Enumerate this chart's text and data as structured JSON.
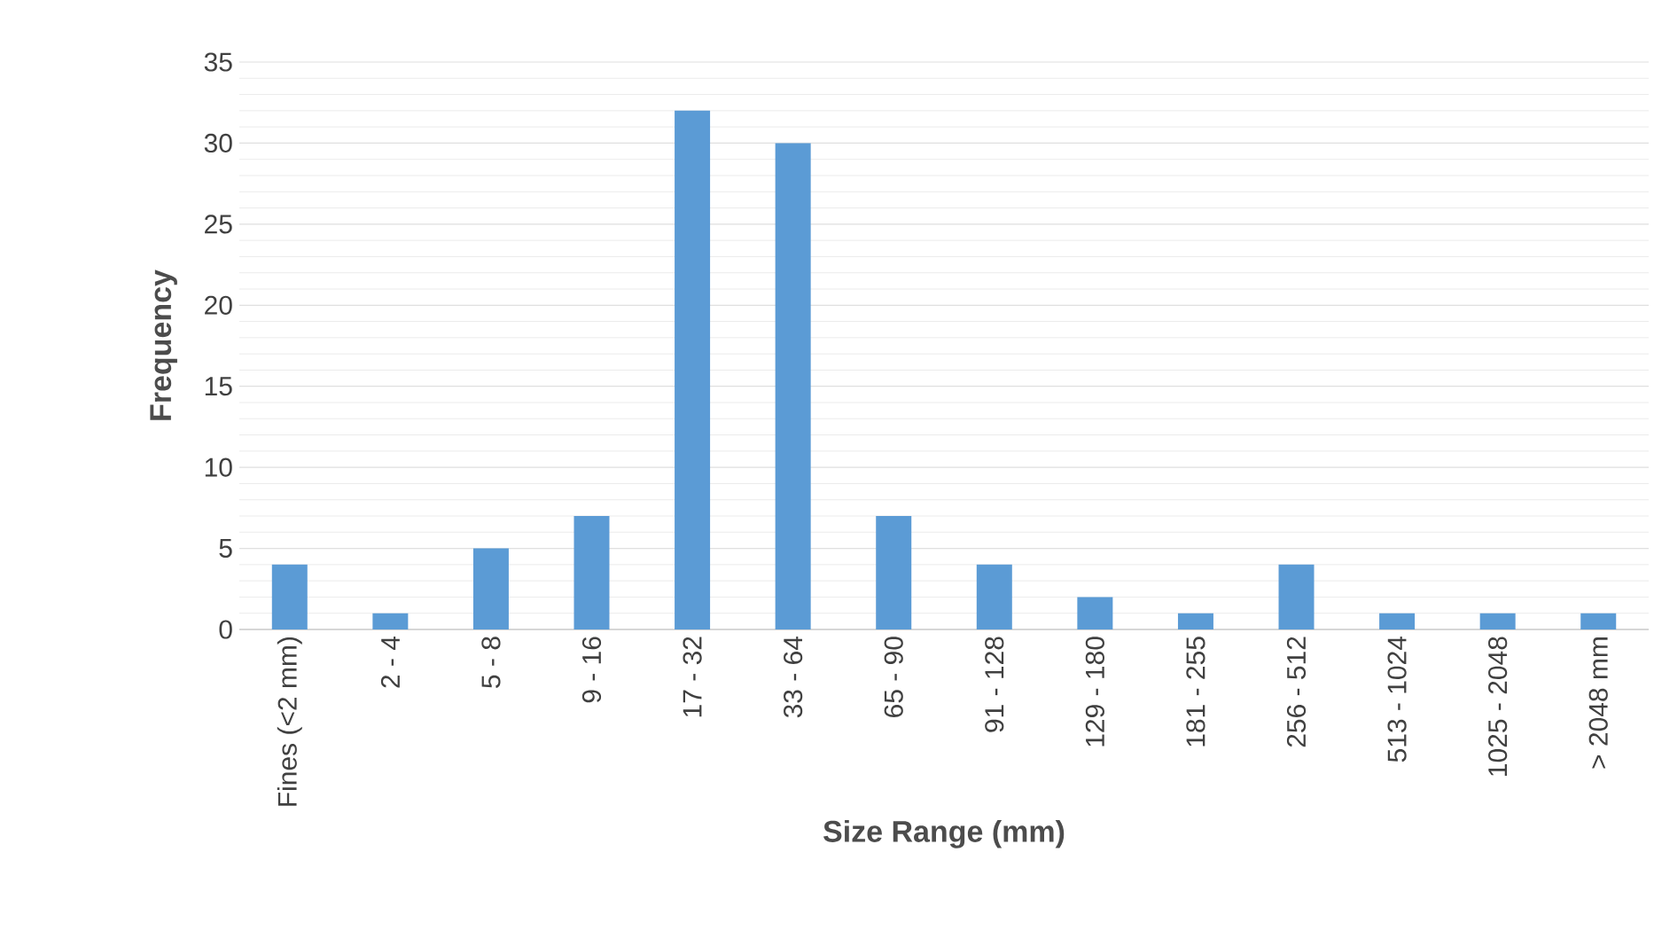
{
  "chart_data": {
    "type": "bar",
    "xlabel": "Size Range (mm)",
    "ylabel": "Frequency",
    "categories": [
      "Fines (<2 mm)",
      "2 - 4",
      "5 - 8",
      "9 - 16",
      "17 - 32",
      "33 - 64",
      "65 - 90",
      "91 - 128",
      "129 - 180",
      "181 - 255",
      "256 - 512",
      "513 - 1024",
      "1025 - 2048",
      "> 2048 mm"
    ],
    "values": [
      4,
      1,
      5,
      7,
      32,
      30,
      7,
      4,
      2,
      1,
      4,
      1,
      1,
      1
    ],
    "color": "#5b9bd5",
    "ylim": [
      0,
      35
    ],
    "yticks": [
      0,
      5,
      10,
      15,
      20,
      25,
      30,
      35
    ],
    "grid": "y"
  }
}
